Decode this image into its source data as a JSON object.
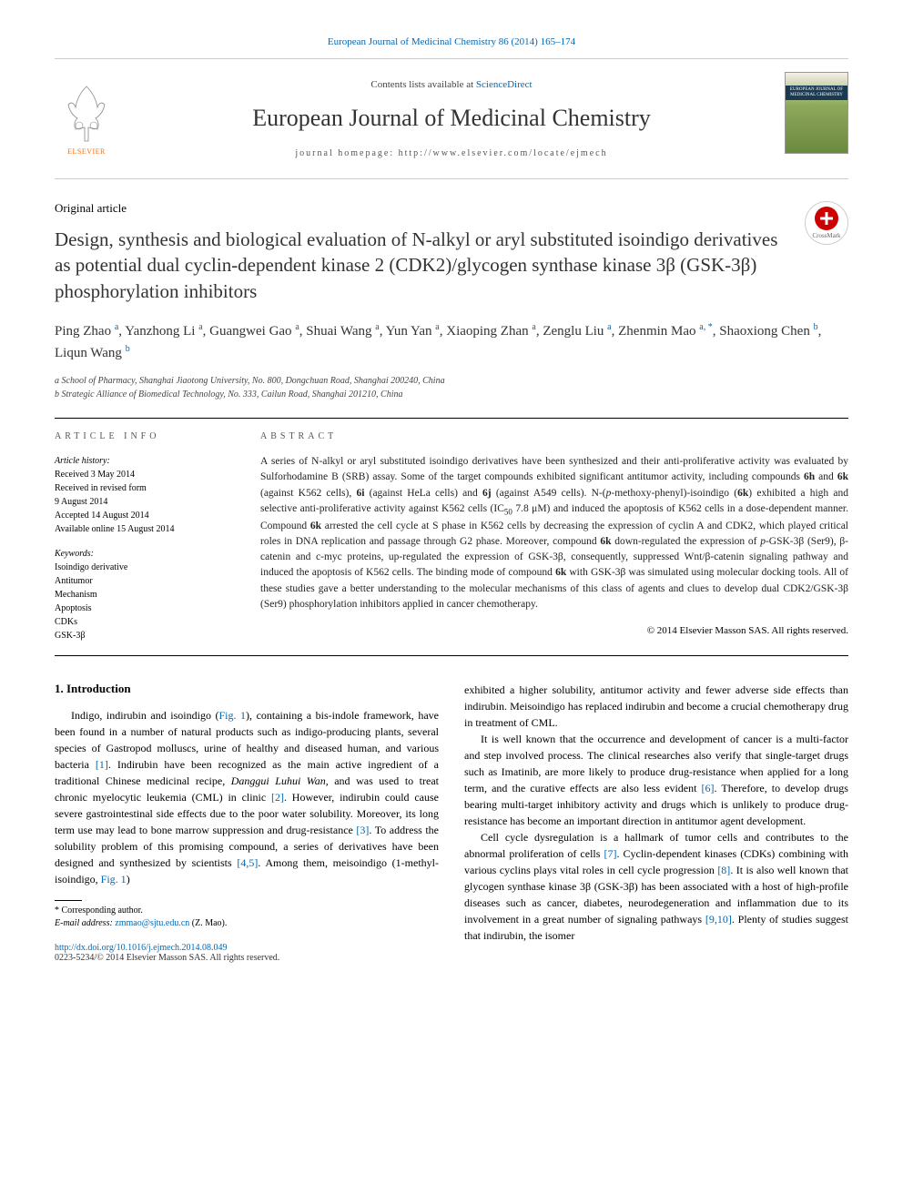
{
  "header": {
    "citation_link": "European Journal of Medicinal Chemistry 86 (2014) 165–174",
    "contents_line": "Contents lists available at ",
    "sciencedirect": "ScienceDirect",
    "journal_name": "European Journal of Medicinal Chemistry",
    "homepage_label": "journal homepage: http://www.elsevier.com/locate/ejmech",
    "publisher_name": "ELSEVIER",
    "cover_band": "EUROPEAN JOURNAL OF MEDICINAL CHEMISTRY"
  },
  "crossmark_label": "CrossMark",
  "article_type": "Original article",
  "title": "Design, synthesis and biological evaluation of N-alkyl or aryl substituted isoindigo derivatives as potential dual cyclin-dependent kinase 2 (CDK2)/glycogen synthase kinase 3β (GSK-3β) phosphorylation inhibitors",
  "authors_html": "Ping Zhao <sup>a</sup>, Yanzhong Li <sup>a</sup>, Guangwei Gao <sup>a</sup>, Shuai Wang <sup>a</sup>, Yun Yan <sup>a</sup>, Xiaoping Zhan <sup>a</sup>, Zenglu Liu <sup>a</sup>, Zhenmin Mao <sup>a, *</sup>, Shaoxiong Chen <sup>b</sup>, Liqun Wang <sup>b</sup>",
  "affiliations": {
    "a": "a School of Pharmacy, Shanghai Jiaotong University, No. 800, Dongchuan Road, Shanghai 200240, China",
    "b": "b Strategic Alliance of Biomedical Technology, No. 333, Cailun Road, Shanghai 201210, China"
  },
  "info": {
    "heading": "ARTICLE INFO",
    "history_label": "Article history:",
    "history": [
      "Received 3 May 2014",
      "Received in revised form",
      "9 August 2014",
      "Accepted 14 August 2014",
      "Available online 15 August 2014"
    ],
    "keywords_label": "Keywords:",
    "keywords": [
      "Isoindigo derivative",
      "Antitumor",
      "Mechanism",
      "Apoptosis",
      "CDKs",
      "GSK-3β"
    ]
  },
  "abstract": {
    "heading": "ABSTRACT",
    "text_html": "A series of N-alkyl or aryl substituted isoindigo derivatives have been synthesized and their anti-proliferative activity was evaluated by Sulforhodamine B (SRB) assay. Some of the target compounds exhibited significant antitumor activity, including compounds <b>6h</b> and <b>6k</b> (against K562 cells), <b>6i</b> (against HeLa cells) and <b>6j</b> (against A549 cells). N-(<i>p</i>-methoxy-phenyl)-isoindigo (<b>6k</b>) exhibited a high and selective anti-proliferative activity against K562 cells (IC<sub>50</sub> 7.8 μM) and induced the apoptosis of K562 cells in a dose-dependent manner. Compound <b>6k</b> arrested the cell cycle at S phase in K562 cells by decreasing the expression of cyclin A and CDK2, which played critical roles in DNA replication and passage through G2 phase. Moreover, compound <b>6k</b> down-regulated the expression of <i>p</i>-GSK-3β (Ser9), β-catenin and c-myc proteins, up-regulated the expression of GSK-3β, consequently, suppressed Wnt/β-catenin signaling pathway and induced the apoptosis of K562 cells. The binding mode of compound <b>6k</b> with GSK-3β was simulated using molecular docking tools. All of these studies gave a better understanding to the molecular mechanisms of this class of agents and clues to develop dual CDK2/GSK-3β (Ser9) phosphorylation inhibitors applied in cancer chemotherapy.",
    "copyright": "© 2014 Elsevier Masson SAS. All rights reserved."
  },
  "body": {
    "section1_title": "1. Introduction",
    "col1_html": "<p>Indigo, indirubin and isoindigo (<span class='fig-link'>Fig. 1</span>), containing a bis-indole framework, have been found in a number of natural products such as indigo-producing plants, several species of Gastropod molluscs, urine of healthy and diseased human, and various bacteria <span class='ref-link'>[1]</span>. Indirubin have been recognized as the main active ingredient of a traditional Chinese medicinal recipe, <span class='em'>Danggui Luhui Wan</span>, and was used to treat chronic myelocytic leukemia (CML) in clinic <span class='ref-link'>[2]</span>. However, indirubin could cause severe gastrointestinal side effects due to the poor water solubility. Moreover, its long term use may lead to bone marrow suppression and drug-resistance <span class='ref-link'>[3]</span>. To address the solubility problem of this promising compound, a series of derivatives have been designed and synthesized by scientists <span class='ref-link'>[4,5]</span>. Among them, meisoindigo (1-methyl-isoindigo, <span class='fig-link'>Fig. 1</span>)</p>",
    "col2_html": "<p style='text-indent:0'>exhibited a higher solubility, antitumor activity and fewer adverse side effects than indirubin. Meisoindigo has replaced indirubin and become a crucial chemotherapy drug in treatment of CML.</p><p>It is well known that the occurrence and development of cancer is a multi-factor and step involved process. The clinical researches also verify that single-target drugs such as Imatinib, are more likely to produce drug-resistance when applied for a long term, and the curative effects are also less evident <span class='ref-link'>[6]</span>. Therefore, to develop drugs bearing multi-target inhibitory activity and drugs which is unlikely to produce drug-resistance has become an important direction in antitumor agent development.</p><p>Cell cycle dysregulation is a hallmark of tumor cells and contributes to the abnormal proliferation of cells <span class='ref-link'>[7]</span>. Cyclin-dependent kinases (CDKs) combining with various cyclins plays vital roles in cell cycle progression <span class='ref-link'>[8]</span>. It is also well known that glycogen synthase kinase 3β (GSK-3β) has been associated with a host of high-profile diseases such as cancer, diabetes, neurodegeneration and inflammation due to its involvement in a great number of signaling pathways <span class='ref-link'>[9,10]</span>. Plenty of studies suggest that indirubin, the isomer</p>"
  },
  "footnote": {
    "corresp": "* Corresponding author.",
    "email_label": "E-mail address: ",
    "email": "zmmao@sjtu.edu.cn",
    "email_attr": " (Z. Mao)."
  },
  "doi": {
    "url": "http://dx.doi.org/10.1016/j.ejmech.2014.08.049",
    "issn_copy": "0223-5234/© 2014 Elsevier Masson SAS. All rights reserved."
  },
  "colors": {
    "link": "#0068b4",
    "text": "#000000",
    "elsevier_orange": "#ff6c00",
    "border": "#000000"
  },
  "typography": {
    "title_fontsize": 21,
    "journal_name_fontsize": 26,
    "body_fontsize": 12,
    "abstract_fontsize": 11.5,
    "footnote_fontsize": 10
  }
}
